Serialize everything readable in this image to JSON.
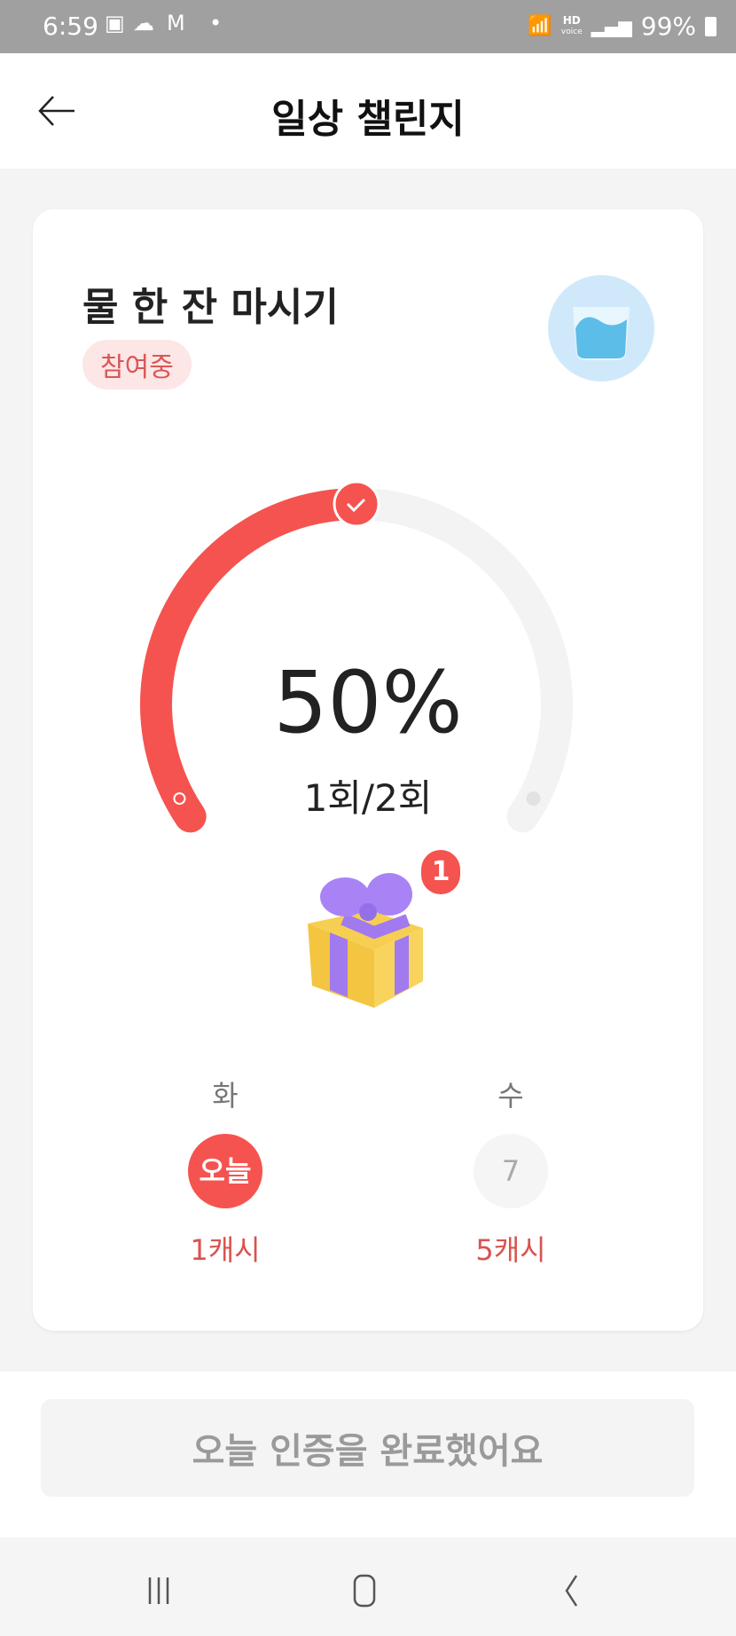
{
  "status_bar": {
    "time": "6:59",
    "battery": "99%",
    "hd_label": "HD",
    "voice_label": "voice"
  },
  "header": {
    "title": "일상 챌린지"
  },
  "challenge": {
    "title": "물 한 잔 마시기",
    "status_badge": "참여중",
    "progress_percent": 50,
    "progress_label": "50%",
    "count_label": "1회/2회",
    "gift_badge_count": "1",
    "days": [
      {
        "day": "화",
        "marker": "오늘",
        "reward": "1캐시",
        "is_today": true
      },
      {
        "day": "수",
        "marker": "7",
        "reward": "5캐시",
        "is_today": false
      }
    ]
  },
  "footer": {
    "button_label": "오늘 인증을 완료했어요"
  },
  "colors": {
    "accent": "#f5534f",
    "track": "#f3f3f3",
    "badge_bg": "#fde6e6",
    "button_bg": "#f4f4f4"
  }
}
